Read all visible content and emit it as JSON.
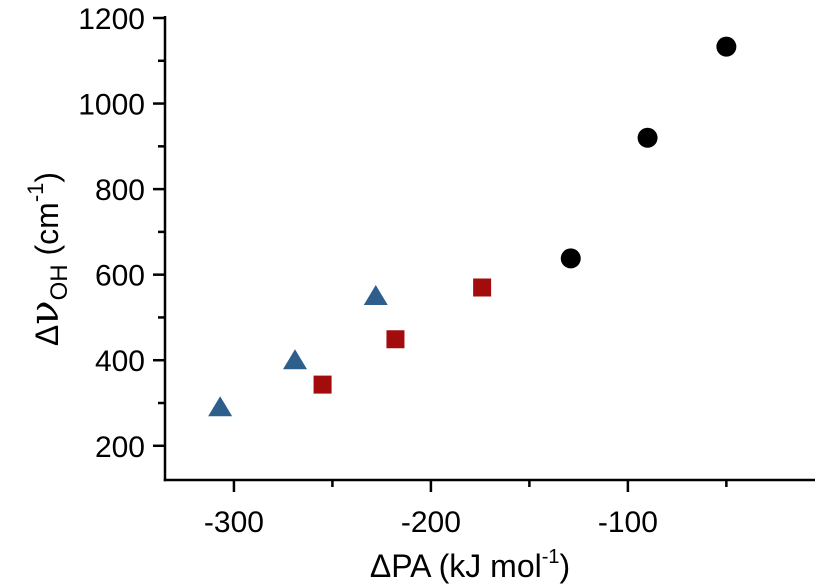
{
  "chart_data": {
    "type": "scatter",
    "x_axis": {
      "label_prefix": "ΔPA (kJ mol",
      "label_sup": "-1",
      "label_suffix": ")",
      "range": [
        -335,
        -5
      ],
      "major_ticks": [
        -300,
        -200,
        -100
      ],
      "minor_ticks": [
        -250,
        -150,
        -50
      ],
      "tick_labels": [
        "-300",
        "-200",
        "-100"
      ]
    },
    "y_axis": {
      "label_delta": "Δ",
      "label_nu": "ν",
      "label_sub": "OH",
      "label_unit_open": " (cm",
      "label_sup": "-1",
      "label_unit_close": ")",
      "range": [
        120,
        1200
      ],
      "major_ticks": [
        200,
        400,
        600,
        800,
        1000,
        1200
      ],
      "minor_ticks": [
        300,
        500,
        700,
        900,
        1100
      ],
      "tick_labels": [
        "200",
        "400",
        "600",
        "800",
        "1000",
        "1200"
      ]
    },
    "grid": false,
    "series": [
      {
        "marker": "triangle",
        "color": "#2e5f8c",
        "points": [
          {
            "x": -307,
            "y": 290
          },
          {
            "x": -269,
            "y": 400
          },
          {
            "x": -228,
            "y": 550
          }
        ]
      },
      {
        "marker": "square",
        "color": "#a30c0c",
        "points": [
          {
            "x": -255,
            "y": 343
          },
          {
            "x": -218,
            "y": 449
          },
          {
            "x": -174,
            "y": 570
          }
        ]
      },
      {
        "marker": "circle",
        "color": "#000000",
        "points": [
          {
            "x": -129,
            "y": 638
          },
          {
            "x": -90,
            "y": 920
          },
          {
            "x": -50,
            "y": 1133
          }
        ]
      }
    ]
  }
}
